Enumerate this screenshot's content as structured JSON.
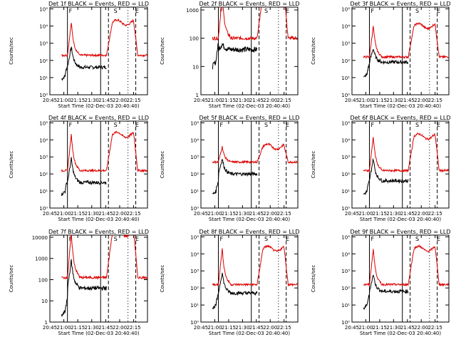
{
  "figure": {
    "panels": [
      {
        "title": "Det 1f BLACK = Events, RED = LLD",
        "ylabel": "Counts/sec",
        "xlabel": "Start Time (02-Dec-03 20:40:40)",
        "yticks": [
          {
            "v": 0,
            "t": "10⁰"
          },
          {
            "v": 1,
            "t": "10¹"
          },
          {
            "v": 2,
            "t": "10²"
          },
          {
            "v": 3,
            "t": "10³"
          },
          {
            "v": 4,
            "t": "10⁴"
          },
          {
            "v": 5,
            "t": "10⁵"
          }
        ],
        "ylog": [
          0,
          5.1
        ],
        "red_base": 2.3,
        "red_peak": 4.2,
        "black_base": 1.6,
        "black_peak": 2.8,
        "black_start": 0.9
      },
      {
        "title": "Det 2f BLACK = Events, RED = LLD",
        "ylabel": "Counts/sec",
        "xlabel": "Start Time (02-Dec-03 20:40:40)",
        "yticks": [
          {
            "v": 0,
            "t": "1"
          },
          {
            "v": 1,
            "t": "10"
          },
          {
            "v": 2,
            "t": "100"
          },
          {
            "v": 3,
            "t": "1000"
          }
        ],
        "ylog": [
          0,
          3.1
        ],
        "red_base": 2.0,
        "red_peak": 3.5,
        "black_base": 1.6,
        "black_peak": 1.8,
        "black_start": 1.0
      },
      {
        "title": "Det 3f BLACK = Events, RED = LLD",
        "ylabel": "Counts/sec",
        "xlabel": "Start Time (02-Dec-03 20:40:40)",
        "yticks": [
          {
            "v": 0,
            "t": "10⁰"
          },
          {
            "v": 1,
            "t": "10¹"
          },
          {
            "v": 2,
            "t": "10²"
          },
          {
            "v": 3,
            "t": "10³"
          },
          {
            "v": 4,
            "t": "10⁴"
          },
          {
            "v": 5,
            "t": "10⁵"
          }
        ],
        "ylog": [
          0,
          5.1
        ],
        "red_base": 2.2,
        "red_peak": 4.0,
        "black_base": 1.9,
        "black_peak": 2.7,
        "black_start": 1.0
      },
      {
        "title": "Det 4f BLACK = Events, RED = LLD",
        "ylabel": "Counts/sec",
        "xlabel": "Start Time (02-Dec-03 20:40:40)",
        "yticks": [
          {
            "v": 0,
            "t": "10⁰"
          },
          {
            "v": 1,
            "t": "10¹"
          },
          {
            "v": 2,
            "t": "10²"
          },
          {
            "v": 3,
            "t": "10³"
          },
          {
            "v": 4,
            "t": "10⁴"
          },
          {
            "v": 5,
            "t": "10⁵"
          }
        ],
        "ylog": [
          0,
          5.1
        ],
        "red_base": 2.2,
        "red_peak": 4.3,
        "black_base": 1.5,
        "black_peak": 2.9,
        "black_start": 0.8
      },
      {
        "title": "Det 5f BLACK = Events, RED = LLD",
        "ylabel": "Counts/sec",
        "xlabel": "Start Time (02-Dec-03 20:40:40)",
        "yticks": [
          {
            "v": 0,
            "t": "10⁰"
          },
          {
            "v": 1,
            "t": "10¹"
          },
          {
            "v": 2,
            "t": "10²"
          },
          {
            "v": 3,
            "t": "10³"
          },
          {
            "v": 4,
            "t": "10⁴"
          },
          {
            "v": 5,
            "t": "10⁵"
          }
        ],
        "ylog": [
          0,
          5.1
        ],
        "red_base": 2.7,
        "red_peak": 3.6,
        "black_base": 2.0,
        "black_peak": 2.9,
        "black_start": 0.8
      },
      {
        "title": "Det 6f BLACK = Events, RED = LLD",
        "ylabel": "Counts/sec",
        "xlabel": "Start Time (02-Dec-03 20:40:40)",
        "yticks": [
          {
            "v": 0,
            "t": "10⁰"
          },
          {
            "v": 1,
            "t": "10¹"
          },
          {
            "v": 2,
            "t": "10²"
          },
          {
            "v": 3,
            "t": "10³"
          },
          {
            "v": 4,
            "t": "10⁴"
          },
          {
            "v": 5,
            "t": "10⁵"
          }
        ],
        "ylog": [
          0,
          5.1
        ],
        "red_base": 2.2,
        "red_peak": 4.2,
        "black_base": 1.6,
        "black_peak": 2.9,
        "black_start": 0.8
      },
      {
        "title": "Det 7f BLACK = Events, RED = LLD",
        "ylabel": "Counts/sec",
        "xlabel": "Start Time (02-Dec-03 20:40:40)",
        "yticks": [
          {
            "v": 0,
            "t": "1"
          },
          {
            "v": 1,
            "t": "10"
          },
          {
            "v": 2,
            "t": "100"
          },
          {
            "v": 3,
            "t": "1000"
          },
          {
            "v": 4,
            "t": "10000"
          }
        ],
        "ylog": [
          0,
          4.1
        ],
        "red_base": 2.1,
        "red_peak": 4.2,
        "black_base": 1.6,
        "black_peak": 2.9,
        "black_start": 0.3
      },
      {
        "title": "Det 8f BLACK = Events, RED = LLD",
        "ylabel": "Counts/sec",
        "xlabel": "Start Time (02-Dec-03 20:40:40)",
        "yticks": [
          {
            "v": 0,
            "t": "10⁰"
          },
          {
            "v": 1,
            "t": "10¹"
          },
          {
            "v": 2,
            "t": "10²"
          },
          {
            "v": 3,
            "t": "10³"
          },
          {
            "v": 4,
            "t": "10⁴"
          },
          {
            "v": 5,
            "t": "10⁵"
          }
        ],
        "ylog": [
          0,
          5.1
        ],
        "red_base": 2.2,
        "red_peak": 4.3,
        "black_base": 1.7,
        "black_peak": 2.9,
        "black_start": 0.8
      },
      {
        "title": "Det 9f BLACK = Events, RED = LLD",
        "ylabel": "Counts/sec",
        "xlabel": "Start Time (02-Dec-03 20:40:40)",
        "yticks": [
          {
            "v": 0,
            "t": "10⁰"
          },
          {
            "v": 1,
            "t": "10¹"
          },
          {
            "v": 2,
            "t": "10²"
          },
          {
            "v": 3,
            "t": "10³"
          },
          {
            "v": 4,
            "t": "10⁴"
          },
          {
            "v": 5,
            "t": "10⁵"
          }
        ],
        "ylog": [
          0,
          5.1
        ],
        "red_base": 2.2,
        "red_peak": 4.3,
        "black_base": 1.8,
        "black_peak": 2.8,
        "black_start": 0.8
      }
    ],
    "xticks": [
      "20:45",
      "21:00",
      "21:15",
      "21:30",
      "21:45",
      "22:00",
      "22:15"
    ],
    "markers": {
      "f": "F",
      "s": "S",
      "e": "E"
    },
    "colors": {
      "red": "#dd0000",
      "black": "#000000",
      "axis": "#000000"
    }
  },
  "chart_data": {
    "type": "line",
    "x_unit": "minutes after 20:40:40 (02-Dec-03)",
    "xlim": [
      0,
      100
    ],
    "series": [
      {
        "name": "BLACK = Events",
        "color": "#000000"
      },
      {
        "name": "RED = LLD",
        "color": "#dd0000"
      }
    ],
    "events": {
      "F_start": 18,
      "F_end": 52,
      "S_start": 60,
      "S_end": 80,
      "E_time": 88
    },
    "note_scale": "log"
  }
}
